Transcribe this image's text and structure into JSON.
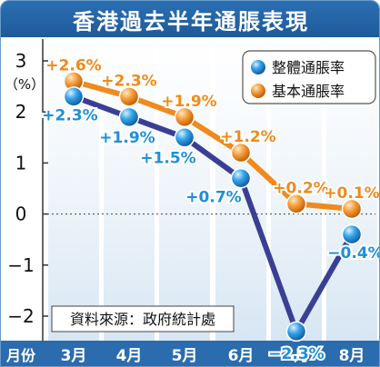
{
  "chart_data": {
    "type": "line",
    "title": "香港過去半年通脹表現",
    "ylabel": "（%）",
    "xlabel": "月份",
    "categories": [
      "3月",
      "4月",
      "5月",
      "6月",
      "7月",
      "8月"
    ],
    "ylim": [
      -2,
      3
    ],
    "yticks": [
      "3",
      "2",
      "1",
      "0",
      "−1",
      "−2"
    ],
    "series": [
      {
        "name": "整體通脹率",
        "color": "#1f8fd8",
        "line_color": "#3a3f94",
        "values": [
          2.3,
          1.9,
          1.5,
          0.7,
          -2.3,
          -0.4
        ],
        "labels": [
          "+2.3%",
          "+1.9%",
          "+1.5%",
          "+0.7%",
          "−2.3%",
          "−0.4%"
        ]
      },
      {
        "name": "基本通脹率",
        "color": "#f08a1c",
        "line_color": "#f08a1c",
        "values": [
          2.6,
          2.3,
          1.9,
          1.2,
          0.2,
          0.1
        ],
        "labels": [
          "+2.6%",
          "+2.3%",
          "+1.9%",
          "+1.2%",
          "+0.2%",
          "+0.1%"
        ]
      }
    ],
    "source_note": "資料來源：政府統計處",
    "legend_position": "top-right"
  }
}
